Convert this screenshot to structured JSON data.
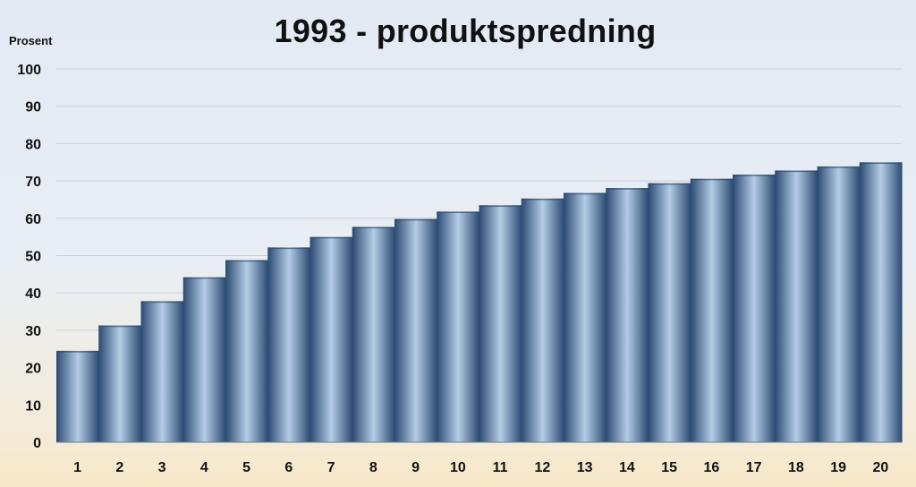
{
  "chart_data": {
    "type": "bar",
    "title": "1993 - produktspredning",
    "ylabel": "Prosent",
    "xlabel": "",
    "categories": [
      "1",
      "2",
      "3",
      "4",
      "5",
      "6",
      "7",
      "8",
      "9",
      "10",
      "11",
      "12",
      "13",
      "14",
      "15",
      "16",
      "17",
      "18",
      "19",
      "20"
    ],
    "values": [
      24.5,
      31.3,
      37.8,
      44.2,
      48.8,
      52.2,
      55.0,
      57.7,
      59.8,
      61.8,
      63.5,
      65.3,
      66.8,
      68.1,
      69.4,
      70.6,
      71.7,
      72.8,
      73.9,
      75.0
    ],
    "ylim": [
      0,
      100
    ],
    "yticks": [
      0,
      10,
      20,
      30,
      40,
      50,
      60,
      70,
      80,
      90,
      100
    ],
    "grid": true,
    "legend": "none",
    "colors": {
      "bar_edge": "#2b4a72",
      "bar_center": "#b4cde6",
      "grid": "#c8d0dc",
      "axis": "#7a7a7a"
    }
  }
}
